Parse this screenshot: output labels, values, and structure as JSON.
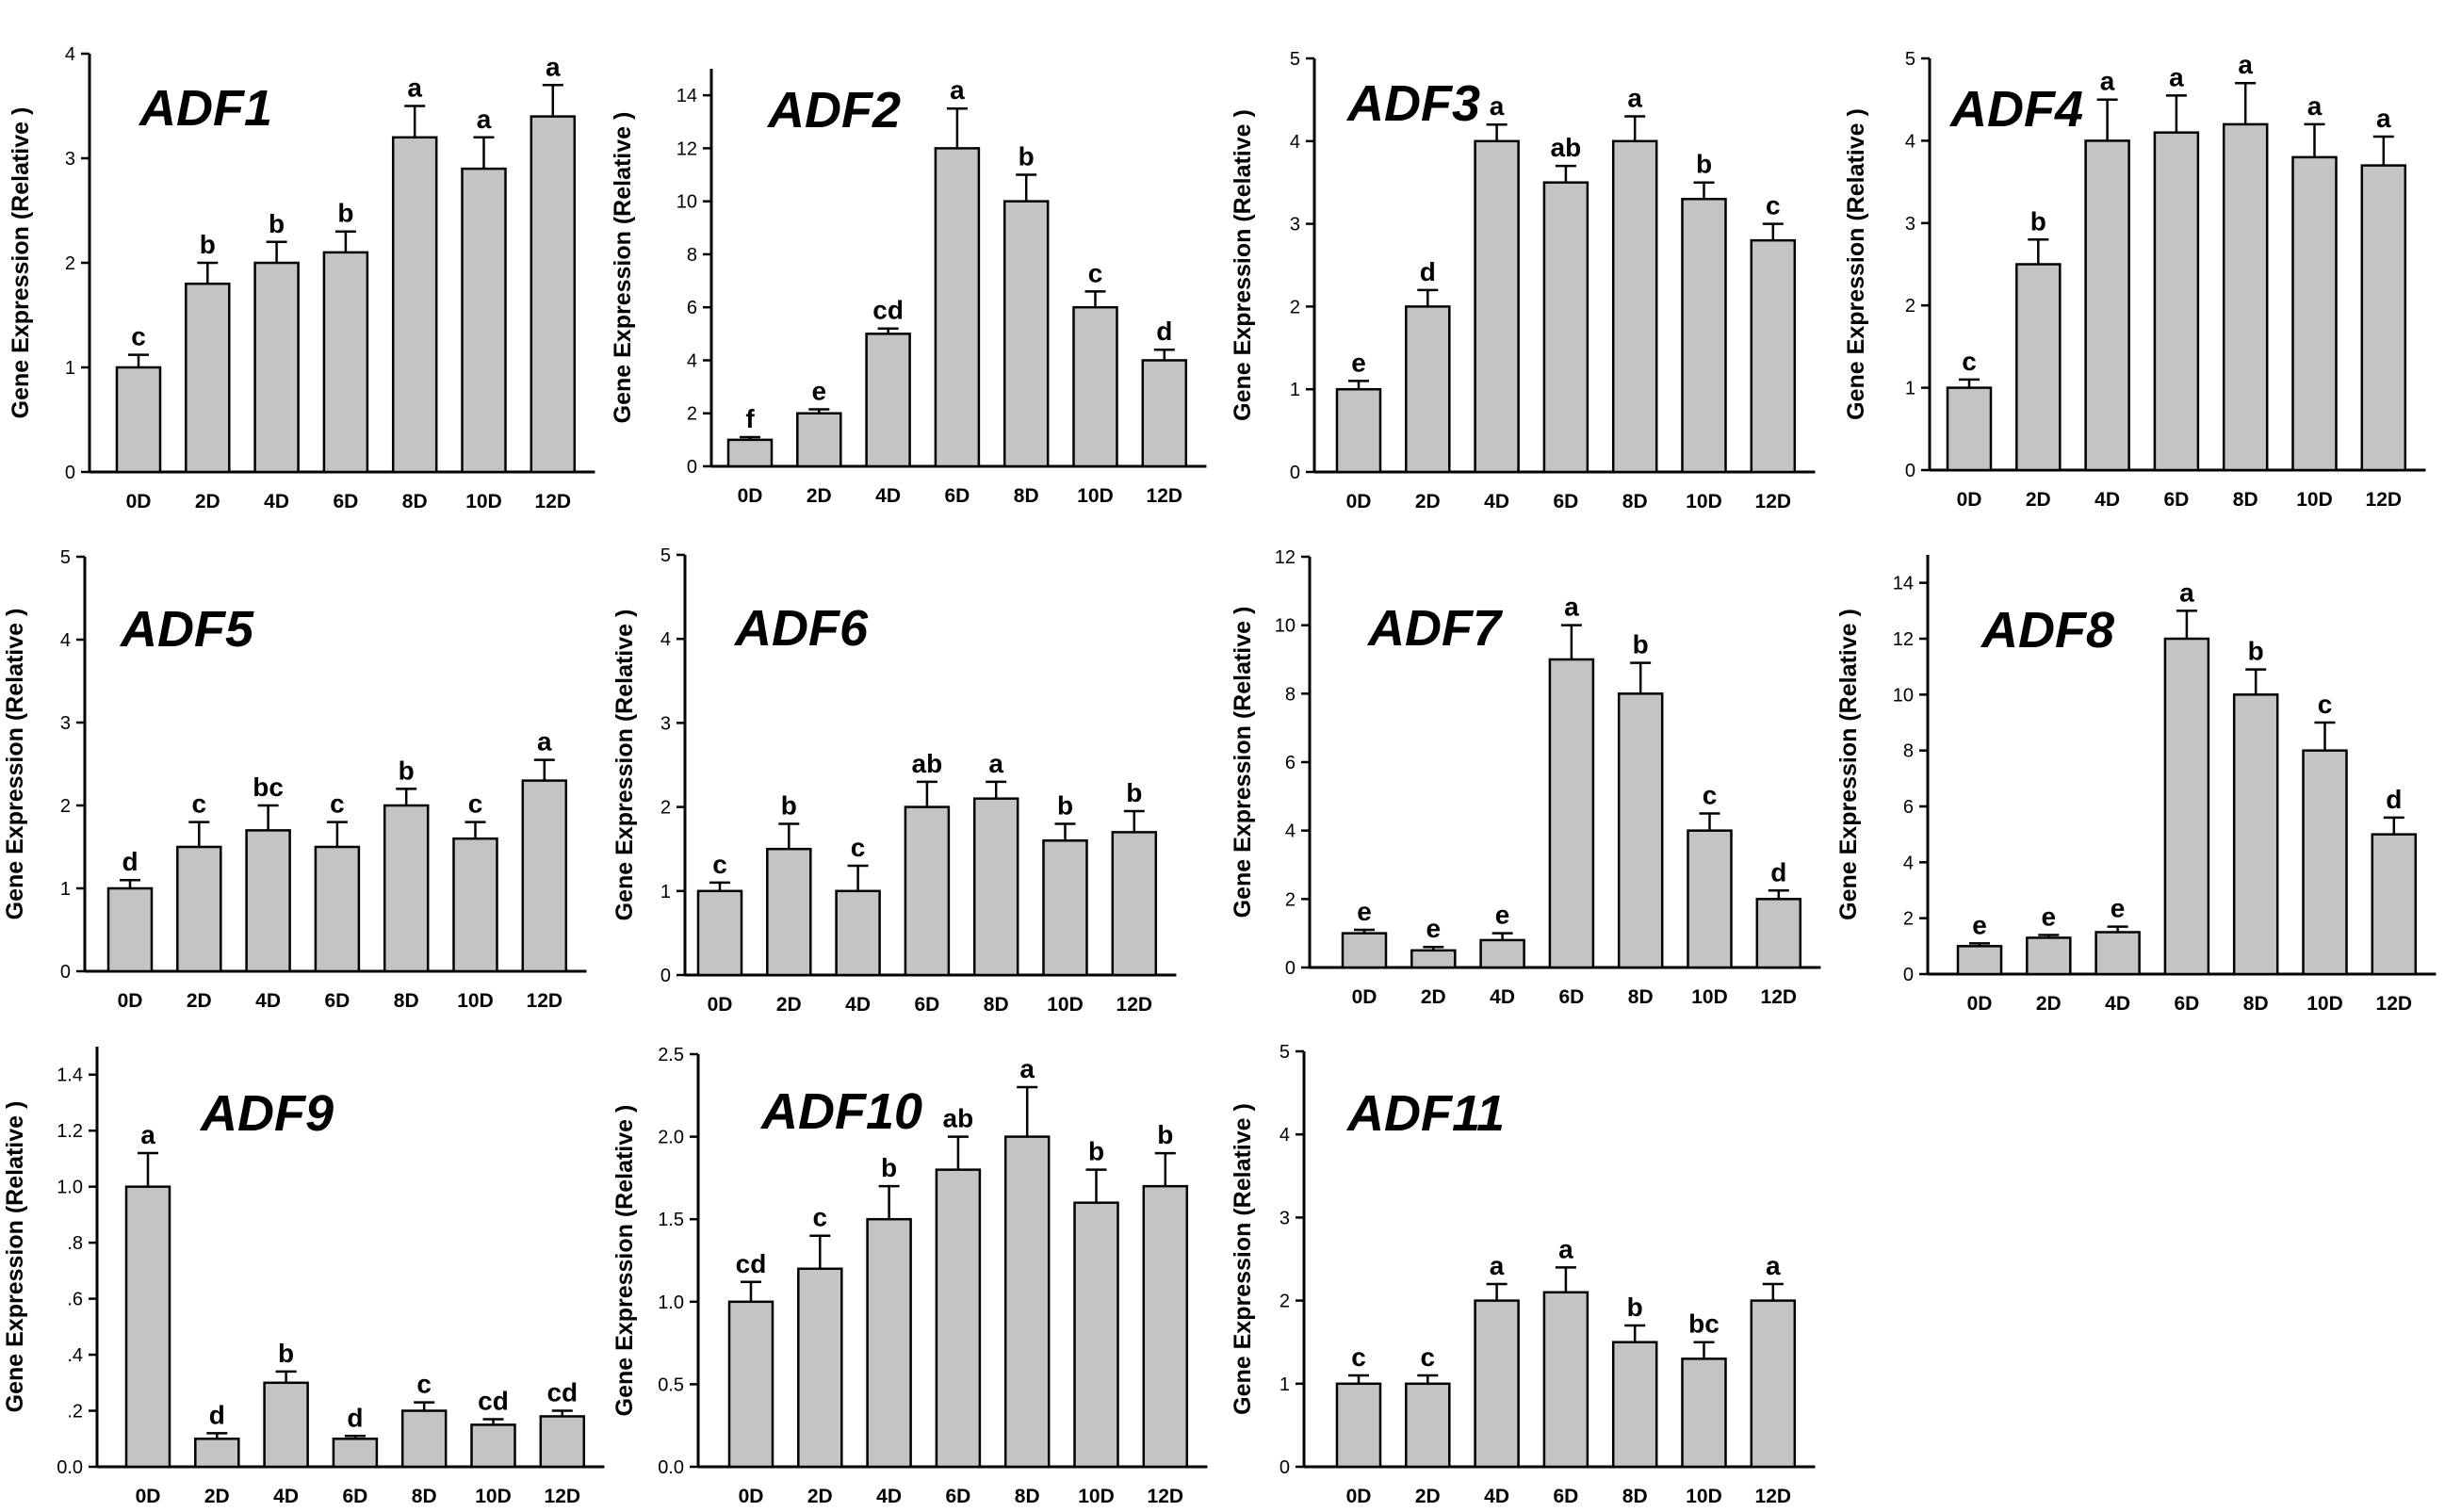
{
  "figure": {
    "bar_color": "#c4c4c4",
    "bar_stroke": "#000000"
  },
  "chart_data": [
    {
      "type": "bar",
      "title": "ADF1",
      "ylabel": "Gene Expression (Relative )",
      "xlabel": "",
      "ylim": [
        0,
        4
      ],
      "yticks": [
        0,
        1,
        2,
        3,
        4
      ],
      "ytick_labels": [
        "0",
        "1",
        "2",
        "3",
        "4"
      ],
      "categories": [
        "0D",
        "2D",
        "4D",
        "6D",
        "8D",
        "10D",
        "12D"
      ],
      "values": [
        1.0,
        1.8,
        2.0,
        2.1,
        3.2,
        2.9,
        3.4
      ],
      "errors": [
        0.12,
        0.2,
        0.2,
        0.2,
        0.3,
        0.3,
        0.3
      ],
      "significance": [
        "c",
        "b",
        "b",
        "b",
        "a",
        "a",
        "a"
      ]
    },
    {
      "type": "bar",
      "title": "ADF2",
      "ylabel": "Gene Expression (Relative )",
      "xlabel": "",
      "ylim": [
        0,
        15
      ],
      "yticks": [
        0,
        2,
        4,
        6,
        8,
        10,
        12,
        14
      ],
      "ytick_labels": [
        "0",
        "2",
        "4",
        "6",
        "8",
        "10",
        "12",
        "14"
      ],
      "categories": [
        "0D",
        "2D",
        "4D",
        "6D",
        "8D",
        "10D",
        "12D"
      ],
      "values": [
        1.0,
        2.0,
        5.0,
        12.0,
        10.0,
        6.0,
        4.0
      ],
      "errors": [
        0.1,
        0.15,
        0.2,
        1.5,
        1.0,
        0.6,
        0.4
      ],
      "significance": [
        "f",
        "e",
        "cd",
        "a",
        "b",
        "c",
        "d"
      ]
    },
    {
      "type": "bar",
      "title": "ADF3",
      "ylabel": "Gene Expression (Relative )",
      "xlabel": "",
      "ylim": [
        0,
        5
      ],
      "yticks": [
        0,
        1,
        2,
        3,
        4,
        5
      ],
      "ytick_labels": [
        "0",
        "1",
        "2",
        "3",
        "4",
        "5"
      ],
      "categories": [
        "0D",
        "2D",
        "4D",
        "6D",
        "8D",
        "10D",
        "12D"
      ],
      "values": [
        1.0,
        2.0,
        4.0,
        3.5,
        4.0,
        3.3,
        2.8
      ],
      "errors": [
        0.1,
        0.2,
        0.2,
        0.2,
        0.3,
        0.2,
        0.2
      ],
      "significance": [
        "e",
        "d",
        "a",
        "ab",
        "a",
        "b",
        "c"
      ]
    },
    {
      "type": "bar",
      "title": "ADF4",
      "ylabel": "Gene Expression (Relative )",
      "xlabel": "",
      "ylim": [
        0,
        5
      ],
      "yticks": [
        0,
        1,
        2,
        3,
        4,
        5
      ],
      "ytick_labels": [
        "0",
        "1",
        "2",
        "3",
        "4",
        "5"
      ],
      "categories": [
        "0D",
        "2D",
        "4D",
        "6D",
        "8D",
        "10D",
        "12D"
      ],
      "values": [
        1.0,
        2.5,
        4.0,
        4.1,
        4.2,
        3.8,
        3.7
      ],
      "errors": [
        0.1,
        0.3,
        0.5,
        0.45,
        0.5,
        0.4,
        0.35
      ],
      "significance": [
        "c",
        "b",
        "a",
        "a",
        "a",
        "a",
        "a"
      ]
    },
    {
      "type": "bar",
      "title": "ADF5",
      "ylabel": "Gene Expression (Relative )",
      "xlabel": "",
      "ylim": [
        0,
        5
      ],
      "yticks": [
        0,
        1,
        2,
        3,
        4,
        5
      ],
      "ytick_labels": [
        "0",
        "1",
        "2",
        "3",
        "4",
        "5"
      ],
      "categories": [
        "0D",
        "2D",
        "4D",
        "6D",
        "8D",
        "10D",
        "12D"
      ],
      "values": [
        1.0,
        1.5,
        1.7,
        1.5,
        2.0,
        1.6,
        2.3
      ],
      "errors": [
        0.1,
        0.3,
        0.3,
        0.3,
        0.2,
        0.2,
        0.25
      ],
      "significance": [
        "d",
        "c",
        "bc",
        "c",
        "b",
        "c",
        "a"
      ]
    },
    {
      "type": "bar",
      "title": "ADF6",
      "ylabel": "Gene Expression (Relative )",
      "xlabel": "",
      "ylim": [
        0,
        5
      ],
      "yticks": [
        0,
        1,
        2,
        3,
        4,
        5
      ],
      "ytick_labels": [
        "0",
        "1",
        "2",
        "3",
        "4",
        "5"
      ],
      "categories": [
        "0D",
        "2D",
        "4D",
        "6D",
        "8D",
        "10D",
        "12D"
      ],
      "values": [
        1.0,
        1.5,
        1.0,
        2.0,
        2.1,
        1.6,
        1.7
      ],
      "errors": [
        0.1,
        0.3,
        0.3,
        0.3,
        0.2,
        0.2,
        0.25
      ],
      "significance": [
        "c",
        "b",
        "c",
        "ab",
        "a",
        "b",
        "b"
      ]
    },
    {
      "type": "bar",
      "title": "ADF7",
      "ylabel": "Gene Expression (Relative )",
      "xlabel": "",
      "ylim": [
        0,
        12
      ],
      "yticks": [
        0,
        2,
        4,
        6,
        8,
        10,
        12
      ],
      "ytick_labels": [
        "0",
        "2",
        "4",
        "6",
        "8",
        "10",
        "12"
      ],
      "categories": [
        "0D",
        "2D",
        "4D",
        "6D",
        "8D",
        "10D",
        "12D"
      ],
      "values": [
        1.0,
        0.5,
        0.8,
        9.0,
        8.0,
        4.0,
        2.0
      ],
      "errors": [
        0.1,
        0.1,
        0.2,
        1.0,
        0.9,
        0.5,
        0.25
      ],
      "significance": [
        "e",
        "e",
        "e",
        "a",
        "b",
        "c",
        "d"
      ]
    },
    {
      "type": "bar",
      "title": "ADF8",
      "ylabel": "Gene Expression (Relative )",
      "xlabel": "",
      "ylim": [
        0,
        15
      ],
      "yticks": [
        0,
        2,
        4,
        6,
        8,
        10,
        12,
        14
      ],
      "ytick_labels": [
        "0",
        "2",
        "4",
        "6",
        "8",
        "10",
        "12",
        "14"
      ],
      "categories": [
        "0D",
        "2D",
        "4D",
        "6D",
        "8D",
        "10D",
        "12D"
      ],
      "values": [
        1.0,
        1.3,
        1.5,
        12.0,
        10.0,
        8.0,
        5.0
      ],
      "errors": [
        0.1,
        0.1,
        0.2,
        1.0,
        0.9,
        1.0,
        0.6
      ],
      "significance": [
        "e",
        "e",
        "e",
        "a",
        "b",
        "c",
        "d"
      ]
    },
    {
      "type": "bar",
      "title": "ADF9",
      "ylabel": "Gene Expression (Relative )",
      "xlabel": "",
      "ylim": [
        0,
        1.5
      ],
      "yticks": [
        0,
        0.2,
        0.4,
        0.6,
        0.8,
        1.0,
        1.2,
        1.4
      ],
      "ytick_labels": [
        "0.0",
        ".2",
        ".4",
        ".6",
        ".8",
        "1.0",
        "1.2",
        "1.4"
      ],
      "categories": [
        "0D",
        "2D",
        "4D",
        "6D",
        "8D",
        "10D",
        "12D"
      ],
      "values": [
        1.0,
        0.1,
        0.3,
        0.1,
        0.2,
        0.15,
        0.18
      ],
      "errors": [
        0.12,
        0.02,
        0.04,
        0.01,
        0.03,
        0.02,
        0.02
      ],
      "significance": [
        "a",
        "d",
        "b",
        "d",
        "c",
        "cd",
        "cd"
      ]
    },
    {
      "type": "bar",
      "title": "ADF10",
      "ylabel": "Gene Expression (Relative )",
      "xlabel": "",
      "ylim": [
        0,
        2.5
      ],
      "yticks": [
        0,
        0.5,
        1.0,
        1.5,
        2.0,
        2.5
      ],
      "ytick_labels": [
        "0.0",
        "0.5",
        "1.0",
        "1.5",
        "2.0",
        "2.5"
      ],
      "categories": [
        "0D",
        "2D",
        "4D",
        "6D",
        "8D",
        "10D",
        "12D"
      ],
      "values": [
        1.0,
        1.2,
        1.5,
        1.8,
        2.0,
        1.6,
        1.7
      ],
      "errors": [
        0.12,
        0.2,
        0.2,
        0.2,
        0.3,
        0.2,
        0.2
      ],
      "significance": [
        "cd",
        "c",
        "b",
        "ab",
        "a",
        "b",
        "b"
      ]
    },
    {
      "type": "bar",
      "title": "ADF11",
      "ylabel": "Gene Expression (Relative )",
      "xlabel": "",
      "ylim": [
        0,
        5
      ],
      "yticks": [
        0,
        1,
        2,
        3,
        4,
        5
      ],
      "ytick_labels": [
        "0",
        "1",
        "2",
        "3",
        "4",
        "5"
      ],
      "categories": [
        "0D",
        "2D",
        "4D",
        "6D",
        "8D",
        "10D",
        "12D"
      ],
      "values": [
        1.0,
        1.0,
        2.0,
        2.1,
        1.5,
        1.3,
        2.0
      ],
      "errors": [
        0.1,
        0.1,
        0.2,
        0.3,
        0.2,
        0.2,
        0.2
      ],
      "significance": [
        "c",
        "c",
        "a",
        "a",
        "b",
        "bc",
        "a"
      ]
    }
  ]
}
